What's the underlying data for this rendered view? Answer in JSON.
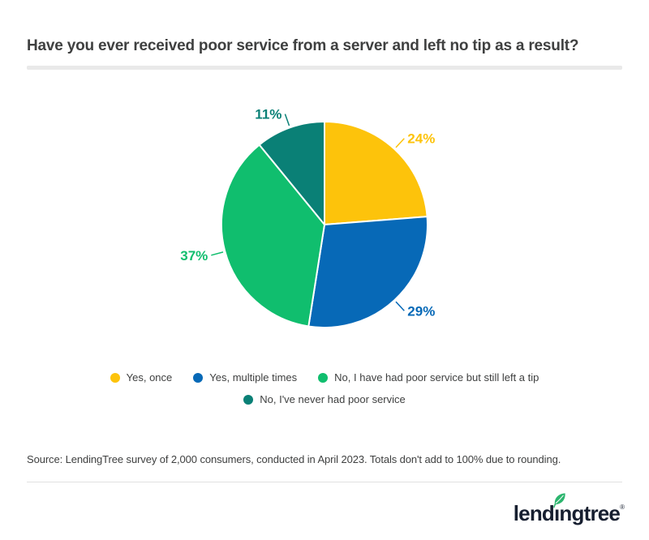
{
  "page": {
    "title": "Have you ever received poor service from a server and left no tip as a result?",
    "source": "Source: LendingTree survey of 2,000 consumers, conducted in April 2023. Totals don't add to 100% due to rounding.",
    "brand": {
      "logo_text": "lendingtree",
      "registered_mark": "®",
      "logo_color": "#171F30",
      "leaf_color": "#2CB56E"
    }
  },
  "chart_data": {
    "type": "pie",
    "title": "Have you ever received poor service from a server and left no tip as a result?",
    "unit": "%",
    "start_angle_deg": 0,
    "direction": "clockwise",
    "legend_position": "bottom",
    "slices": [
      {
        "label": "Yes, once",
        "value": 24,
        "color": "#FDC30B"
      },
      {
        "label": "Yes, multiple times",
        "value": 29,
        "color": "#0769B7"
      },
      {
        "label": "No, I have had poor service but still left a tip",
        "value": 37,
        "color": "#10BE6E"
      },
      {
        "label": "No, I've never had poor service",
        "value": 11,
        "color": "#0A8076"
      }
    ],
    "colors": {
      "text": "#3F4040",
      "divider": "#E9E9E9"
    }
  }
}
